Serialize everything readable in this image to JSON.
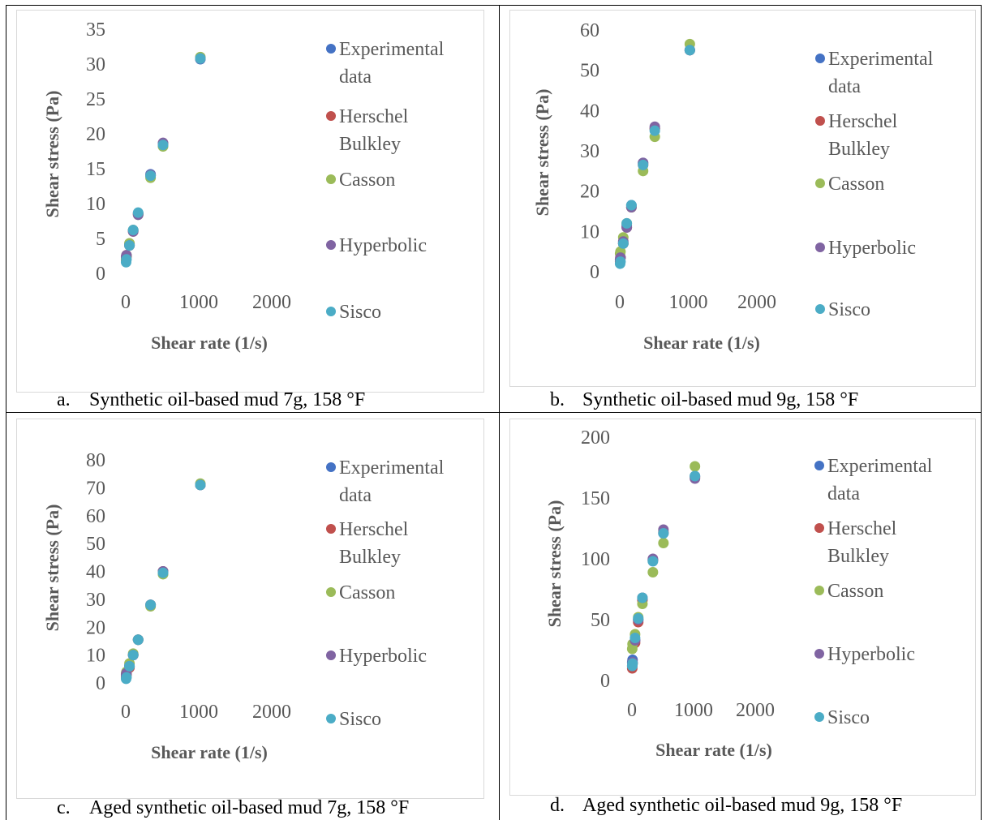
{
  "legend": [
    "Experimental data",
    "Herschel Bulkley",
    "Casson",
    "Hyperbolic",
    "Sisco"
  ],
  "series_colors": {
    "Experimental data": "#4472C4",
    "Herschel Bulkley": "#C0504D",
    "Casson": "#9BBB59",
    "Hyperbolic": "#8064A2",
    "Sisco": "#4BACC6"
  },
  "captions": [
    {
      "letter": "a.",
      "text": "Synthetic oil-based mud 7g, 158 °F"
    },
    {
      "letter": "b.",
      "text": "Synthetic oil-based mud 9g, 158 °F"
    },
    {
      "letter": "c.",
      "text": "Aged synthetic oil-based mud 7g, 158 °F"
    },
    {
      "letter": "d.",
      "text": "Aged synthetic oil-based mud 9g, 158 °F"
    }
  ],
  "chart_data": [
    {
      "type": "scatter",
      "xlabel": "Shear rate (1/s)",
      "ylabel": "Shear stress (Pa)",
      "xlim": [
        0,
        2000
      ],
      "xticks": [
        0,
        1000,
        2000
      ],
      "ylim": [
        0,
        35
      ],
      "yticks": [
        0,
        5,
        10,
        15,
        20,
        25,
        30,
        35
      ],
      "x": [
        5.1,
        10.2,
        51,
        102,
        170,
        340,
        511,
        1022
      ],
      "series": [
        {
          "name": "Experimental data",
          "values": [
            2.0,
            2.5,
            4.2,
            6.2,
            8.6,
            14.2,
            18.6,
            30.7
          ]
        },
        {
          "name": "Herschel Bulkley",
          "values": [
            1.9,
            2.4,
            4.0,
            6.0,
            8.5,
            14.0,
            18.5,
            30.8
          ]
        },
        {
          "name": "Casson",
          "values": [
            2.1,
            2.6,
            4.3,
            6.2,
            8.4,
            13.7,
            18.2,
            31.0
          ]
        },
        {
          "name": "Hyperbolic",
          "values": [
            2.4,
            2.6,
            4.0,
            6.0,
            8.4,
            14.1,
            18.7,
            30.8
          ]
        },
        {
          "name": "Sisco",
          "values": [
            1.6,
            2.0,
            4.0,
            6.2,
            8.7,
            14.0,
            18.4,
            30.8
          ]
        }
      ]
    },
    {
      "type": "scatter",
      "xlabel": "Shear rate (1/s)",
      "ylabel": "Shear stress (Pa)",
      "xlim": [
        0,
        2000
      ],
      "xticks": [
        0,
        1000,
        2000
      ],
      "ylim": [
        0,
        60
      ],
      "yticks": [
        0,
        10,
        20,
        30,
        40,
        50,
        60
      ],
      "x": [
        5.1,
        10.2,
        51,
        102,
        170,
        340,
        511,
        1022
      ],
      "series": [
        {
          "name": "Experimental data",
          "values": [
            3.0,
            3.5,
            7.0,
            11.5,
            16.5,
            27.0,
            35.5,
            55.0
          ]
        },
        {
          "name": "Herschel Bulkley",
          "values": [
            2.5,
            3.5,
            7.0,
            11.0,
            16.0,
            26.5,
            35.5,
            55.0
          ]
        },
        {
          "name": "Casson",
          "values": [
            4.5,
            5.0,
            8.5,
            12.0,
            16.0,
            25.0,
            33.5,
            56.5
          ]
        },
        {
          "name": "Hyperbolic",
          "values": [
            3.0,
            3.5,
            7.5,
            11.0,
            16.0,
            27.0,
            36.0,
            55.0
          ]
        },
        {
          "name": "Sisco",
          "values": [
            2.0,
            2.5,
            7.0,
            12.0,
            16.5,
            26.5,
            35.0,
            55.0
          ]
        }
      ]
    },
    {
      "type": "scatter",
      "xlabel": "Shear rate (1/s)",
      "ylabel": "Shear stress (Pa)",
      "xlim": [
        0,
        2000
      ],
      "xticks": [
        0,
        1000,
        2000
      ],
      "ylim": [
        0,
        80
      ],
      "yticks": [
        0,
        10,
        20,
        30,
        40,
        50,
        60,
        70,
        80
      ],
      "x": [
        5.1,
        10.2,
        51,
        102,
        170,
        340,
        511,
        1022
      ],
      "series": [
        {
          "name": "Experimental data",
          "values": [
            2.5,
            3.0,
            6.0,
            10.0,
            15.5,
            28.0,
            40.0,
            71.0
          ]
        },
        {
          "name": "Herschel Bulkley",
          "values": [
            2.0,
            3.0,
            5.5,
            10.0,
            15.5,
            28.0,
            40.0,
            71.0
          ]
        },
        {
          "name": "Casson",
          "values": [
            3.5,
            4.0,
            7.0,
            10.5,
            15.5,
            27.5,
            39.0,
            71.5
          ]
        },
        {
          "name": "Hyperbolic",
          "values": [
            3.0,
            3.5,
            6.0,
            10.0,
            15.5,
            28.0,
            40.0,
            71.0
          ]
        },
        {
          "name": "Sisco",
          "values": [
            1.5,
            2.0,
            6.0,
            10.0,
            15.5,
            28.0,
            39.5,
            71.0
          ]
        }
      ]
    },
    {
      "type": "scatter",
      "xlabel": "Shear rate (1/s)",
      "ylabel": "Shear stress (Pa)",
      "xlim": [
        0,
        2000
      ],
      "xticks": [
        0,
        1000,
        2000
      ],
      "ylim": [
        0,
        200
      ],
      "yticks": [
        0,
        50,
        100,
        150,
        200
      ],
      "x": [
        5.1,
        10.2,
        51,
        102,
        170,
        340,
        511,
        1022
      ],
      "series": [
        {
          "name": "Experimental data",
          "values": [
            15,
            17,
            33,
            50,
            67,
            99,
            121,
            168
          ]
        },
        {
          "name": "Herschel Bulkley",
          "values": [
            10,
            14,
            31,
            48,
            66,
            99,
            122,
            167
          ]
        },
        {
          "name": "Casson",
          "values": [
            26,
            30,
            38,
            52,
            63,
            89,
            113,
            176
          ]
        },
        {
          "name": "Hyperbolic",
          "values": [
            12,
            15,
            33,
            50,
            68,
            100,
            124,
            166
          ]
        },
        {
          "name": "Sisco",
          "values": [
            12,
            14,
            35,
            51,
            68,
            98,
            121,
            168
          ]
        }
      ]
    }
  ]
}
